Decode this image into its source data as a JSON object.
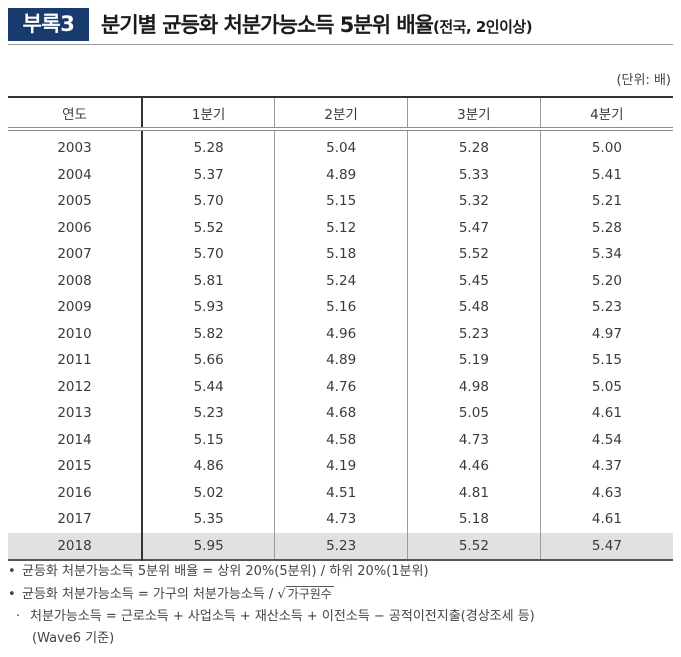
{
  "header": {
    "badge": "부록3",
    "title": "분기별 균등화 처분가능소득 5분위 배율",
    "subtitle": "(전국, 2인이상)"
  },
  "unit": "(단위: 배)",
  "table": {
    "columns": [
      "연도",
      "1분기",
      "2분기",
      "3분기",
      "4분기"
    ],
    "rows": [
      {
        "year": "2003",
        "q": [
          "5.28",
          "5.04",
          "5.28",
          "5.00"
        ]
      },
      {
        "year": "2004",
        "q": [
          "5.37",
          "4.89",
          "5.33",
          "5.41"
        ]
      },
      {
        "year": "2005",
        "q": [
          "5.70",
          "5.15",
          "5.32",
          "5.21"
        ]
      },
      {
        "year": "2006",
        "q": [
          "5.52",
          "5.12",
          "5.47",
          "5.28"
        ]
      },
      {
        "year": "2007",
        "q": [
          "5.70",
          "5.18",
          "5.52",
          "5.34"
        ]
      },
      {
        "year": "2008",
        "q": [
          "5.81",
          "5.24",
          "5.45",
          "5.20"
        ]
      },
      {
        "year": "2009",
        "q": [
          "5.93",
          "5.16",
          "5.48",
          "5.23"
        ]
      },
      {
        "year": "2010",
        "q": [
          "5.82",
          "4.96",
          "5.23",
          "4.97"
        ]
      },
      {
        "year": "2011",
        "q": [
          "5.66",
          "4.89",
          "5.19",
          "5.15"
        ]
      },
      {
        "year": "2012",
        "q": [
          "5.44",
          "4.76",
          "4.98",
          "5.05"
        ]
      },
      {
        "year": "2013",
        "q": [
          "5.23",
          "4.68",
          "5.05",
          "4.61"
        ]
      },
      {
        "year": "2014",
        "q": [
          "5.15",
          "4.58",
          "4.73",
          "4.54"
        ]
      },
      {
        "year": "2015",
        "q": [
          "4.86",
          "4.19",
          "4.46",
          "4.37"
        ]
      },
      {
        "year": "2016",
        "q": [
          "5.02",
          "4.51",
          "4.81",
          "4.63"
        ]
      },
      {
        "year": "2017",
        "q": [
          "5.35",
          "4.73",
          "5.18",
          "4.61"
        ]
      },
      {
        "year": "2018",
        "q": [
          "5.95",
          "5.23",
          "5.52",
          "5.47"
        ]
      }
    ],
    "highlight_row": "2018",
    "highlight_color": "#e1e1e1"
  },
  "notes": {
    "n1_bullet": "•",
    "n1": "균등화 처분가능소득 5분위 배율 = 상위 20%(5분위) / 하위 20%(1분위)",
    "n2_bullet": "•",
    "n2_prefix": "균등화 처분가능소득 = 가구의 처분가능소득 / ",
    "n2_sqrt_symbol": "√",
    "n2_radicand": "가구원수",
    "n3_bullet": "·",
    "n3": "처분가능소득 = 근로소득 + 사업소득 + 재산소득 + 이전소득 − 공적이전지출(경상조세 등)",
    "n3_cont": "(Wave6 기준)"
  },
  "colors": {
    "badge_bg": "#1a3b6e",
    "badge_text": "#ffffff"
  }
}
